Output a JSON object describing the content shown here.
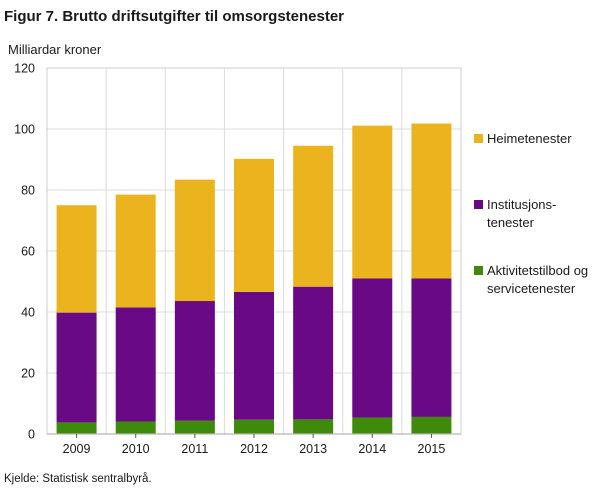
{
  "chart_data": {
    "type": "bar",
    "stacked": true,
    "title": "Figur 7. Brutto driftsutgifter til omsorgstenester",
    "ylabel": "Milliardar  kroner",
    "xlabel": "",
    "categories": [
      "2009",
      "2010",
      "2011",
      "2012",
      "2013",
      "2014",
      "2015"
    ],
    "ylim": [
      0,
      120
    ],
    "yticks": [
      0,
      20,
      40,
      60,
      80,
      100,
      120
    ],
    "grid": true,
    "legend_position": "right",
    "series": [
      {
        "name_lines": [
          "Aktivitetstilbod og",
          "servicetenester"
        ],
        "color": "#3e8b0c",
        "values": [
          3.8,
          4.1,
          4.4,
          4.7,
          4.8,
          5.4,
          5.6
        ]
      },
      {
        "name_lines": [
          "Institusjons-",
          "tenester"
        ],
        "color": "#6a0985",
        "values": [
          36.0,
          37.4,
          39.2,
          41.9,
          43.5,
          45.6,
          45.4
        ]
      },
      {
        "name_lines": [
          "Heimetenester"
        ],
        "color": "#ebb41f",
        "values": [
          35.2,
          37.0,
          39.8,
          43.6,
          46.2,
          50.1,
          50.8
        ]
      }
    ],
    "source": "Kjelde: Statistisk sentralbyrå."
  }
}
